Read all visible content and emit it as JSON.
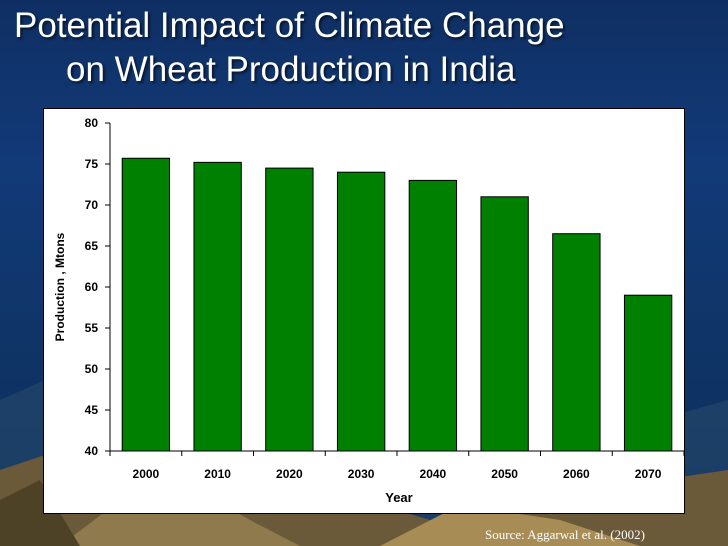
{
  "slide": {
    "title_line1": "Potential Impact of Climate Change",
    "title_line2": "on Wheat Production in India",
    "source": "Source: Aggarwal et al. (2002)"
  },
  "colors": {
    "bar": "#008000",
    "background": "#123a78",
    "plot_bg": "#ffffff"
  },
  "chart_data": {
    "type": "bar",
    "categories": [
      "2000",
      "2010",
      "2020",
      "2030",
      "2040",
      "2050",
      "2060",
      "2070"
    ],
    "values": [
      75.7,
      75.2,
      74.5,
      74.0,
      73.0,
      71.0,
      66.5,
      59.0
    ],
    "title": "",
    "xlabel": "Year",
    "ylabel": "Production , Mtons",
    "ylim": [
      40,
      80
    ],
    "yticks": [
      "40",
      "45",
      "50",
      "55",
      "60",
      "65",
      "70",
      "75",
      "80"
    ],
    "grid": false,
    "legend": "none"
  }
}
